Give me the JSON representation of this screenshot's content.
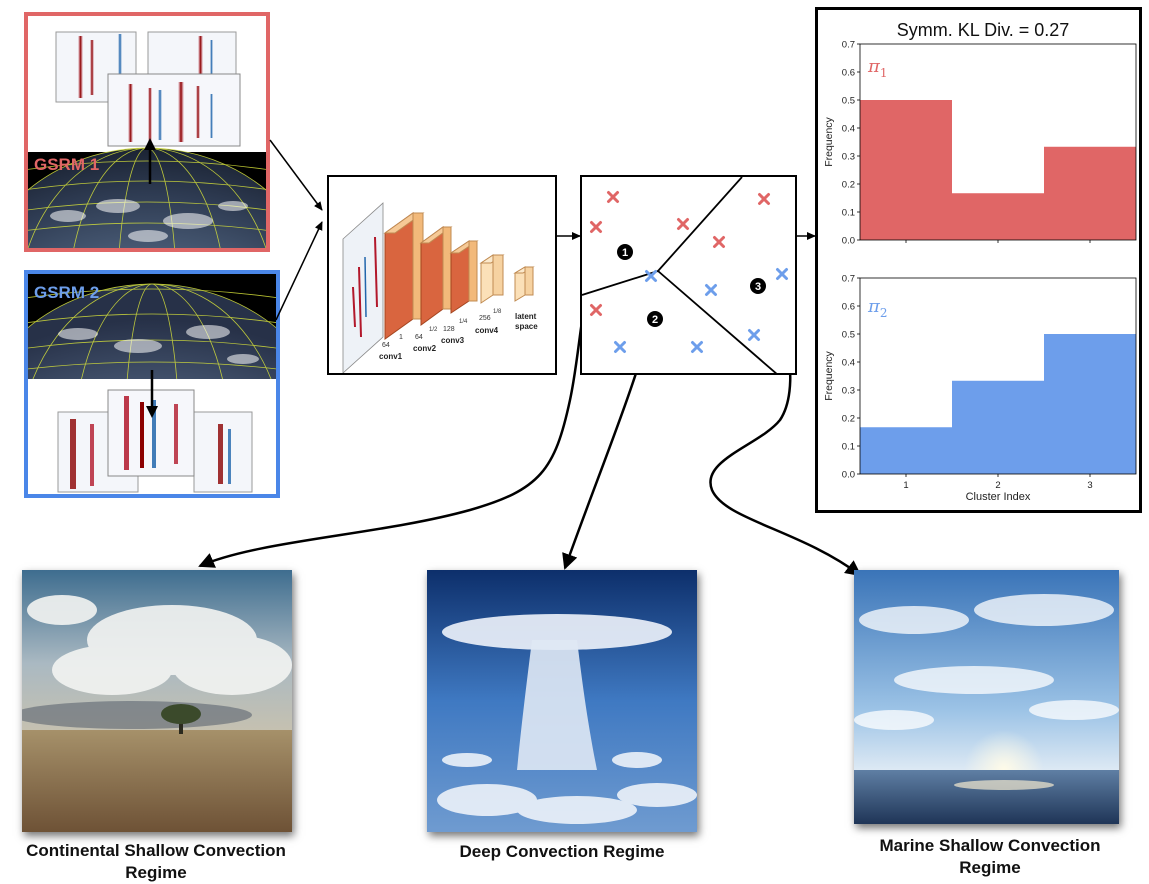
{
  "gsrm": [
    {
      "label": "GSRM 1",
      "color": "#e06666"
    },
    {
      "label": "GSRM 2",
      "color": "#4a86e8"
    }
  ],
  "cnn": {
    "layers": [
      {
        "name": "conv1",
        "channels": "64",
        "scale": "1"
      },
      {
        "name": "conv2",
        "channels": "64",
        "scale": "1/2"
      },
      {
        "name": "conv3",
        "channels": "128",
        "scale": "1/4"
      },
      {
        "name": "conv4",
        "channels": "256",
        "scale": "1/8"
      }
    ],
    "latent_label": [
      "latent",
      "space"
    ]
  },
  "clusters": {
    "markers": [
      "1",
      "2",
      "3"
    ],
    "red_color": "#e06666",
    "blue_color": "#6d9eeb"
  },
  "histograms": {
    "title": "Symm. KL Div. = 0.27",
    "xlabel": "Cluster Index",
    "ylabel": "Frequency",
    "yticks": [
      "0.0",
      "0.1",
      "0.2",
      "0.3",
      "0.4",
      "0.5",
      "0.6",
      "0.7"
    ],
    "xticks": [
      "1",
      "2",
      "3"
    ],
    "pi1_symbol": "π",
    "pi1_sub": "1",
    "pi2_symbol": "π",
    "pi2_sub": "2"
  },
  "chart_data": [
    {
      "type": "bar",
      "categories": [
        "1",
        "2",
        "3"
      ],
      "series": [
        {
          "name": "π1",
          "values": [
            0.5,
            0.167,
            0.333
          ],
          "color": "#e06666"
        }
      ],
      "ylabel": "Frequency",
      "ylim": [
        0,
        0.7
      ],
      "title": "Symm. KL Div. = 0.27"
    },
    {
      "type": "bar",
      "categories": [
        "1",
        "2",
        "3"
      ],
      "series": [
        {
          "name": "π2",
          "values": [
            0.167,
            0.333,
            0.5
          ],
          "color": "#6d9eeb"
        }
      ],
      "xlabel": "Cluster Index",
      "ylabel": "Frequency",
      "ylim": [
        0,
        0.7
      ]
    }
  ],
  "regimes": [
    {
      "line1": "Continental Shallow Convection",
      "line2": "Regime"
    },
    {
      "line1": "Deep Convection Regime",
      "line2": ""
    },
    {
      "line1": "Marine Shallow Convection",
      "line2": "Regime"
    }
  ]
}
